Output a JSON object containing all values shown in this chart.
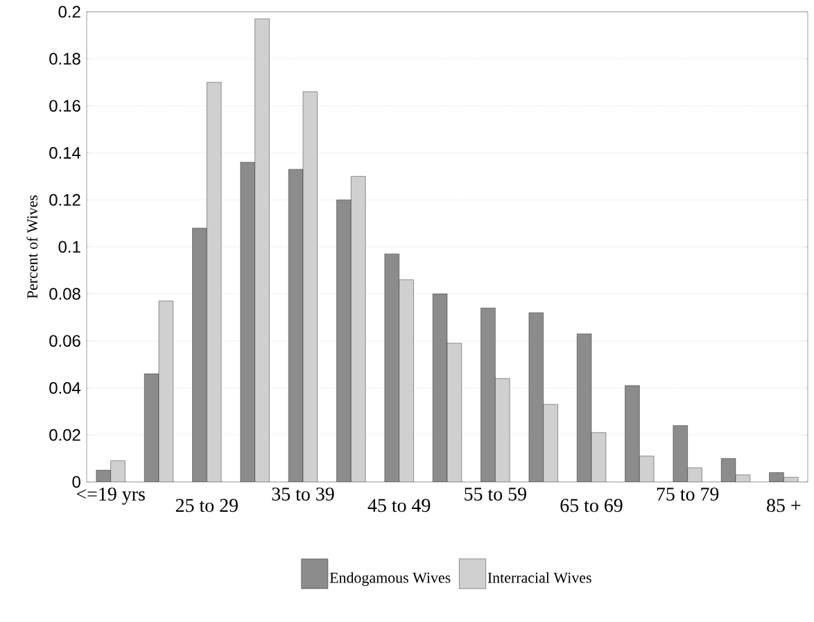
{
  "chart_data": {
    "type": "bar",
    "ylabel": "Percent of Wives",
    "categories": [
      "<=19 yrs",
      null,
      "25 to 29",
      null,
      "35 to 39",
      null,
      "45 to 49",
      null,
      "55 to 59",
      null,
      "65 to 69",
      null,
      "75 to 79",
      null,
      "85 +"
    ],
    "series": [
      {
        "name": "Endogamous Wives",
        "color": "#8c8c8c",
        "values": [
          0.005,
          0.046,
          0.108,
          0.136,
          0.133,
          0.12,
          0.097,
          0.08,
          0.074,
          0.072,
          0.063,
          0.041,
          0.024,
          0.01,
          0.004
        ]
      },
      {
        "name": "Interracial Wives",
        "color": "#d0d0d0",
        "values": [
          0.009,
          0.077,
          0.17,
          0.197,
          0.166,
          0.13,
          0.086,
          0.059,
          0.044,
          0.033,
          0.021,
          0.011,
          0.006,
          0.003,
          0.002
        ]
      }
    ],
    "ylim": [
      0,
      0.2
    ],
    "yticks": [
      0,
      0.02,
      0.04,
      0.06,
      0.08,
      0.1,
      0.12,
      0.14,
      0.16,
      0.18,
      0.2
    ],
    "grid": "y",
    "legend": "bottom"
  }
}
